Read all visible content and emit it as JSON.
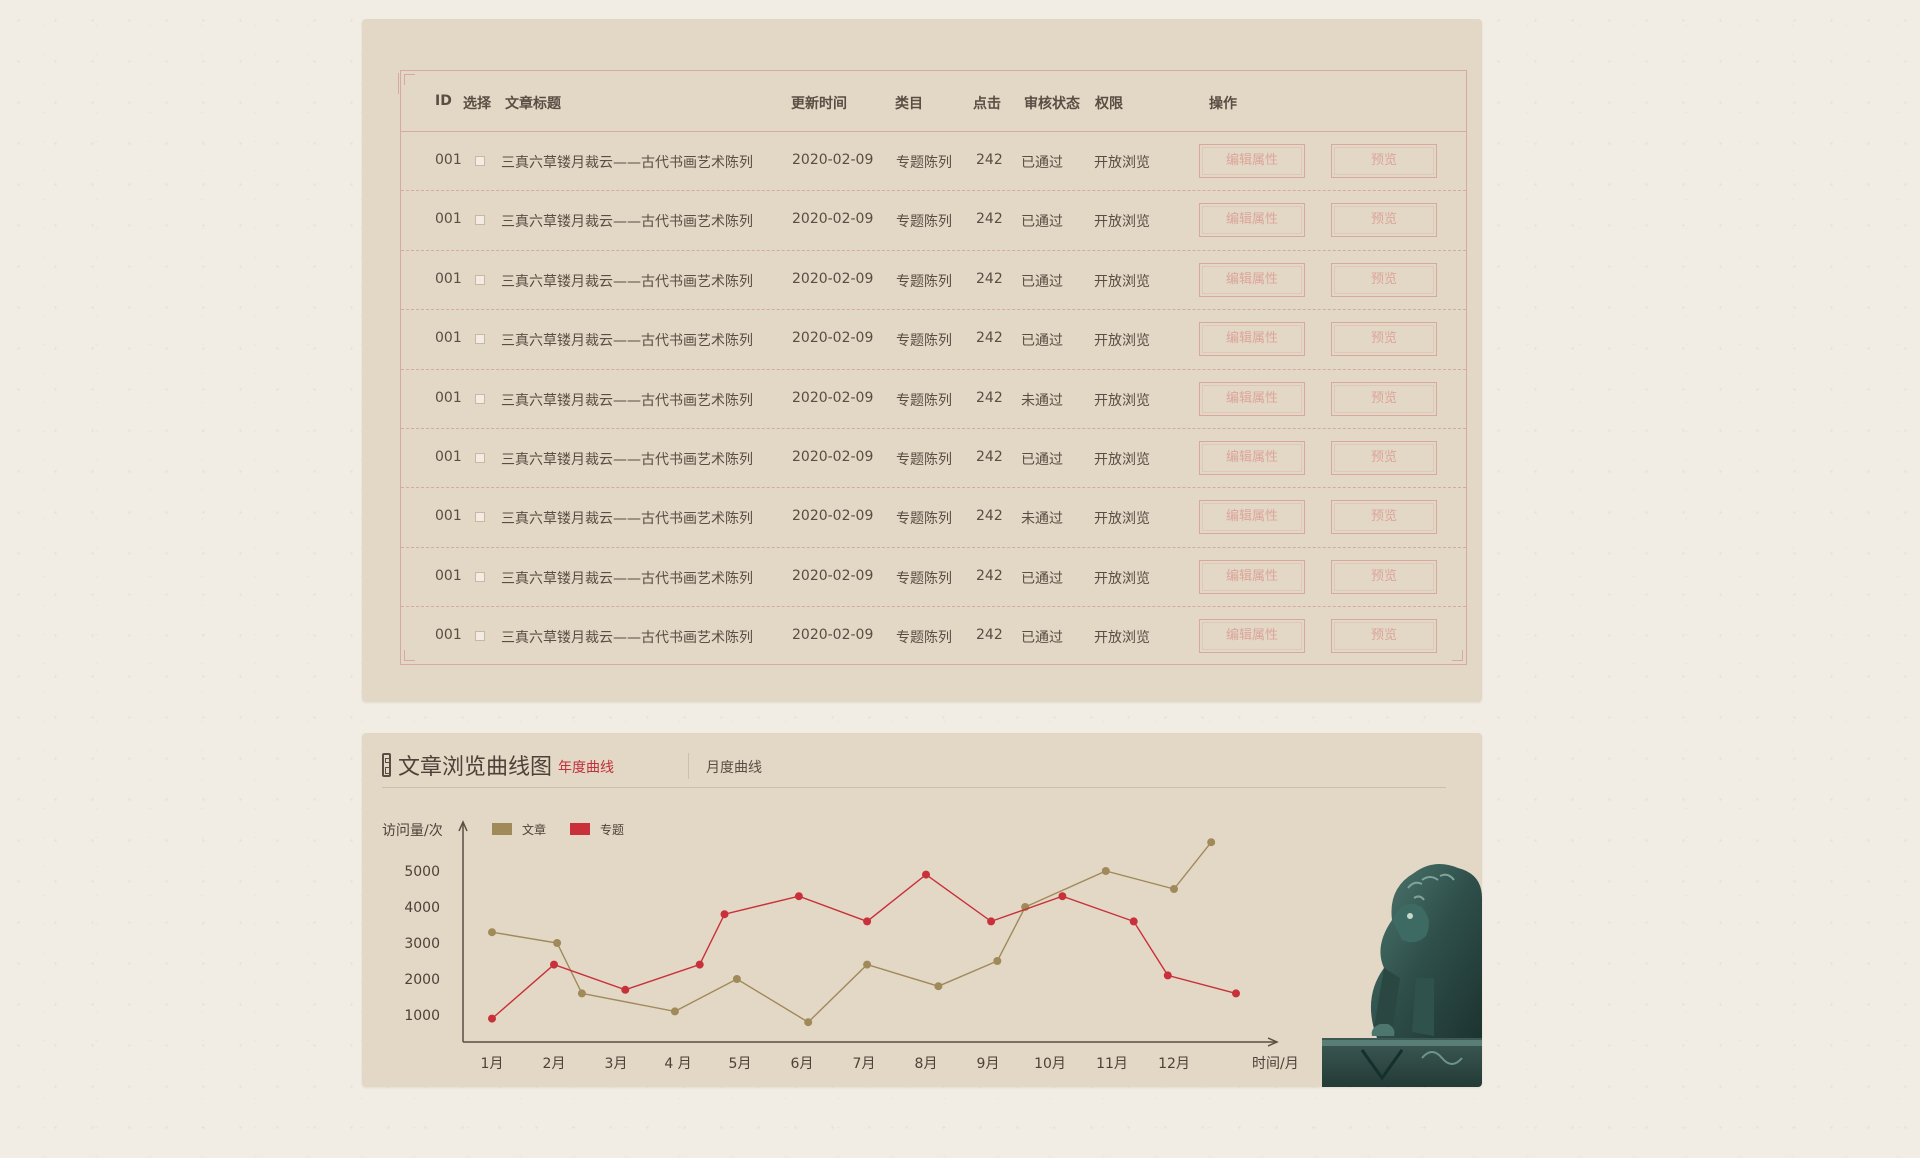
{
  "table": {
    "headers": {
      "id": "ID",
      "select": "选择",
      "title": "文章标题",
      "updated": "更新时间",
      "category": "类目",
      "clicks": "点击",
      "review": "审核状态",
      "permission": "权限",
      "actions": "操作"
    },
    "rows": [
      {
        "id": "001",
        "title": "三真六草镂月裁云——古代书画艺术陈列",
        "updated": "2020-02-09",
        "category": "专题陈列",
        "clicks": "242",
        "review": "已通过",
        "permission": "开放浏览",
        "edit": "编辑属性",
        "preview": "预览"
      },
      {
        "id": "001",
        "title": "三真六草镂月裁云——古代书画艺术陈列",
        "updated": "2020-02-09",
        "category": "专题陈列",
        "clicks": "242",
        "review": "已通过",
        "permission": "开放浏览",
        "edit": "编辑属性",
        "preview": "预览"
      },
      {
        "id": "001",
        "title": "三真六草镂月裁云——古代书画艺术陈列",
        "updated": "2020-02-09",
        "category": "专题陈列",
        "clicks": "242",
        "review": "已通过",
        "permission": "开放浏览",
        "edit": "编辑属性",
        "preview": "预览"
      },
      {
        "id": "001",
        "title": "三真六草镂月裁云——古代书画艺术陈列",
        "updated": "2020-02-09",
        "category": "专题陈列",
        "clicks": "242",
        "review": "已通过",
        "permission": "开放浏览",
        "edit": "编辑属性",
        "preview": "预览"
      },
      {
        "id": "001",
        "title": "三真六草镂月裁云——古代书画艺术陈列",
        "updated": "2020-02-09",
        "category": "专题陈列",
        "clicks": "242",
        "review": "未通过",
        "permission": "开放浏览",
        "edit": "编辑属性",
        "preview": "预览"
      },
      {
        "id": "001",
        "title": "三真六草镂月裁云——古代书画艺术陈列",
        "updated": "2020-02-09",
        "category": "专题陈列",
        "clicks": "242",
        "review": "已通过",
        "permission": "开放浏览",
        "edit": "编辑属性",
        "preview": "预览"
      },
      {
        "id": "001",
        "title": "三真六草镂月裁云——古代书画艺术陈列",
        "updated": "2020-02-09",
        "category": "专题陈列",
        "clicks": "242",
        "review": "未通过",
        "permission": "开放浏览",
        "edit": "编辑属性",
        "preview": "预览"
      },
      {
        "id": "001",
        "title": "三真六草镂月裁云——古代书画艺术陈列",
        "updated": "2020-02-09",
        "category": "专题陈列",
        "clicks": "242",
        "review": "已通过",
        "permission": "开放浏览",
        "edit": "编辑属性",
        "preview": "预览"
      },
      {
        "id": "001",
        "title": "三真六草镂月裁云——古代书画艺术陈列",
        "updated": "2020-02-09",
        "category": "专题陈列",
        "clicks": "242",
        "review": "已通过",
        "permission": "开放浏览",
        "edit": "编辑属性",
        "preview": "预览"
      }
    ]
  },
  "chart_panel": {
    "title": "文章浏览曲线图",
    "tabs": [
      {
        "label": "年度曲线",
        "active": true
      },
      {
        "label": "月度曲线",
        "active": false
      }
    ]
  },
  "colors": {
    "accent_red": "#c0303a",
    "series_article": "#a08a5a",
    "series_topic": "#c8303a",
    "panel_bg": "#e3d7c6",
    "border_pink": "#d6aaa2"
  },
  "chart_data": {
    "type": "line",
    "title": "",
    "ylabel": "访问量/次",
    "xlabel": "时间/月",
    "categories": [
      "1月",
      "2月",
      "3月",
      "4 月",
      "5月",
      "6月",
      "7月",
      "8月",
      "9月",
      "10月",
      "11月",
      "12月"
    ],
    "yticks": [
      1000,
      2000,
      3000,
      4000,
      5000
    ],
    "ylim": [
      0,
      6000
    ],
    "grid": false,
    "legend": "top-left",
    "series": [
      {
        "name": "文章",
        "color": "#a08a5a",
        "points": [
          [
            1,
            3300
          ],
          [
            2.05,
            3000
          ],
          [
            2.45,
            1600
          ],
          [
            3.95,
            1100
          ],
          [
            4.95,
            2000
          ],
          [
            6.1,
            800
          ],
          [
            7.05,
            2400
          ],
          [
            8.2,
            1800
          ],
          [
            9.15,
            2500
          ],
          [
            9.6,
            4000
          ],
          [
            10.9,
            5000
          ],
          [
            12.0,
            4500
          ],
          [
            12.6,
            5800
          ]
        ]
      },
      {
        "name": "专题",
        "color": "#c8303a",
        "points": [
          [
            1,
            900
          ],
          [
            2.0,
            2400
          ],
          [
            3.15,
            1700
          ],
          [
            4.35,
            2400
          ],
          [
            4.75,
            3800
          ],
          [
            5.95,
            4300
          ],
          [
            7.05,
            3600
          ],
          [
            8.0,
            4900
          ],
          [
            9.05,
            3600
          ],
          [
            10.2,
            4300
          ],
          [
            11.35,
            3600
          ],
          [
            11.9,
            2100
          ],
          [
            13.0,
            1600
          ]
        ]
      }
    ]
  },
  "icons": {
    "title_icon": "scroll-icon",
    "decoration": "stone-lion-image"
  }
}
